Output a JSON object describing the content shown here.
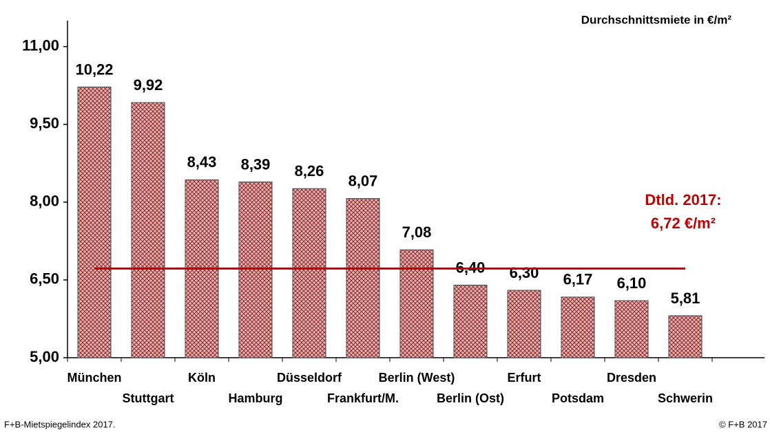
{
  "chart_data": {
    "type": "bar",
    "title": "Durchschnittsmiete  in €/m²",
    "categories": [
      "München",
      "Stuttgart",
      "Köln",
      "Hamburg",
      "Düsseldorf",
      "Frankfurt/M.",
      "Berlin (West)",
      "Berlin (Ost)",
      "Erfurt",
      "Potsdam",
      "Dresden",
      "Schwerin"
    ],
    "values": [
      10.22,
      9.92,
      8.43,
      8.39,
      8.26,
      8.07,
      7.08,
      6.4,
      6.3,
      6.17,
      6.1,
      5.81
    ],
    "value_labels": [
      "10,22",
      "9,92",
      "8,43",
      "8,39",
      "8,26",
      "8,07",
      "7,08",
      "6,40",
      "6,30",
      "6,17",
      "6,10",
      "5,81"
    ],
    "color": "#e6b3b3",
    "ylim": [
      5,
      11.5
    ],
    "yticks": [
      {
        "value": 5,
        "label": "5,00"
      },
      {
        "value": 6.5,
        "label": "6,50"
      },
      {
        "value": 8,
        "label": "8,00"
      },
      {
        "value": 9.5,
        "label": "9,50"
      },
      {
        "value": 11,
        "label": "11,00"
      }
    ],
    "reference_line": {
      "value": 6.72,
      "color": "#c00000",
      "label": [
        "Dtld. 2017:",
        "6,72 €/m²"
      ]
    },
    "source": "F+B-Mietspiegelindex 2017.",
    "credit": "© F+B 2017"
  }
}
